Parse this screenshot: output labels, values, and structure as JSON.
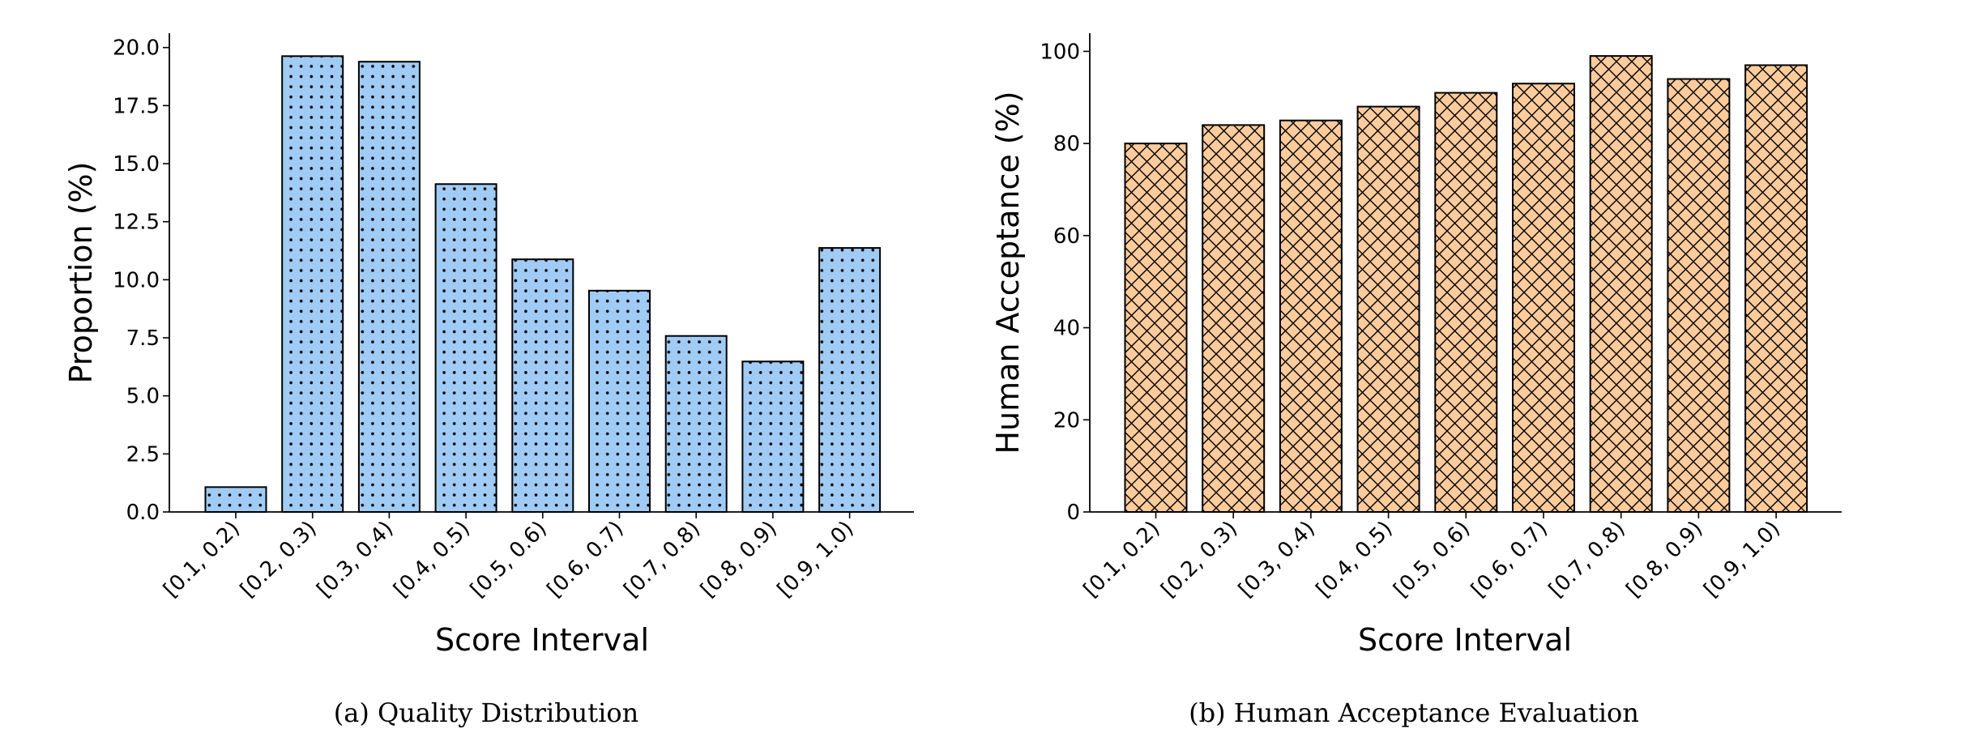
{
  "chart_data": [
    {
      "type": "bar",
      "caption": "(a) Quality Distribution",
      "xlabel": "Score Interval",
      "ylabel": "Proportion (%)",
      "categories": [
        "[0.1, 0.2)",
        "[0.2, 0.3)",
        "[0.3, 0.4)",
        "[0.4, 0.5)",
        "[0.5, 0.6)",
        "[0.6, 0.7)",
        "[0.7, 0.8)",
        "[0.8, 0.9)",
        "[0.9, 1.0)"
      ],
      "values": [
        1.07,
        19.63,
        19.39,
        14.12,
        10.88,
        9.53,
        7.58,
        6.48,
        11.37
      ],
      "ylim": [
        0,
        20.6
      ],
      "yticks": [
        "0.0",
        "2.5",
        "5.0",
        "7.5",
        "10.0",
        "12.5",
        "15.0",
        "17.5",
        "20.0"
      ],
      "bar_color": "#a0cbf5",
      "hatch": "dots",
      "grid": false
    },
    {
      "type": "bar",
      "caption": "(b) Human Acceptance Evaluation",
      "xlabel": "Score Interval",
      "ylabel": "Human Acceptance (%)",
      "categories": [
        "[0.1, 0.2)",
        "[0.2, 0.3)",
        "[0.3, 0.4)",
        "[0.4, 0.5)",
        "[0.5, 0.6)",
        "[0.6, 0.7)",
        "[0.7, 0.8)",
        "[0.8, 0.9)",
        "[0.9, 1.0)"
      ],
      "values": [
        80,
        84,
        85,
        88,
        91,
        93,
        99,
        94,
        97
      ],
      "ylim": [
        0,
        104
      ],
      "yticks": [
        "0",
        "20",
        "40",
        "60",
        "80",
        "100"
      ],
      "bar_color": "#fdcb9c",
      "hatch": "crosshatch",
      "grid": false
    }
  ]
}
